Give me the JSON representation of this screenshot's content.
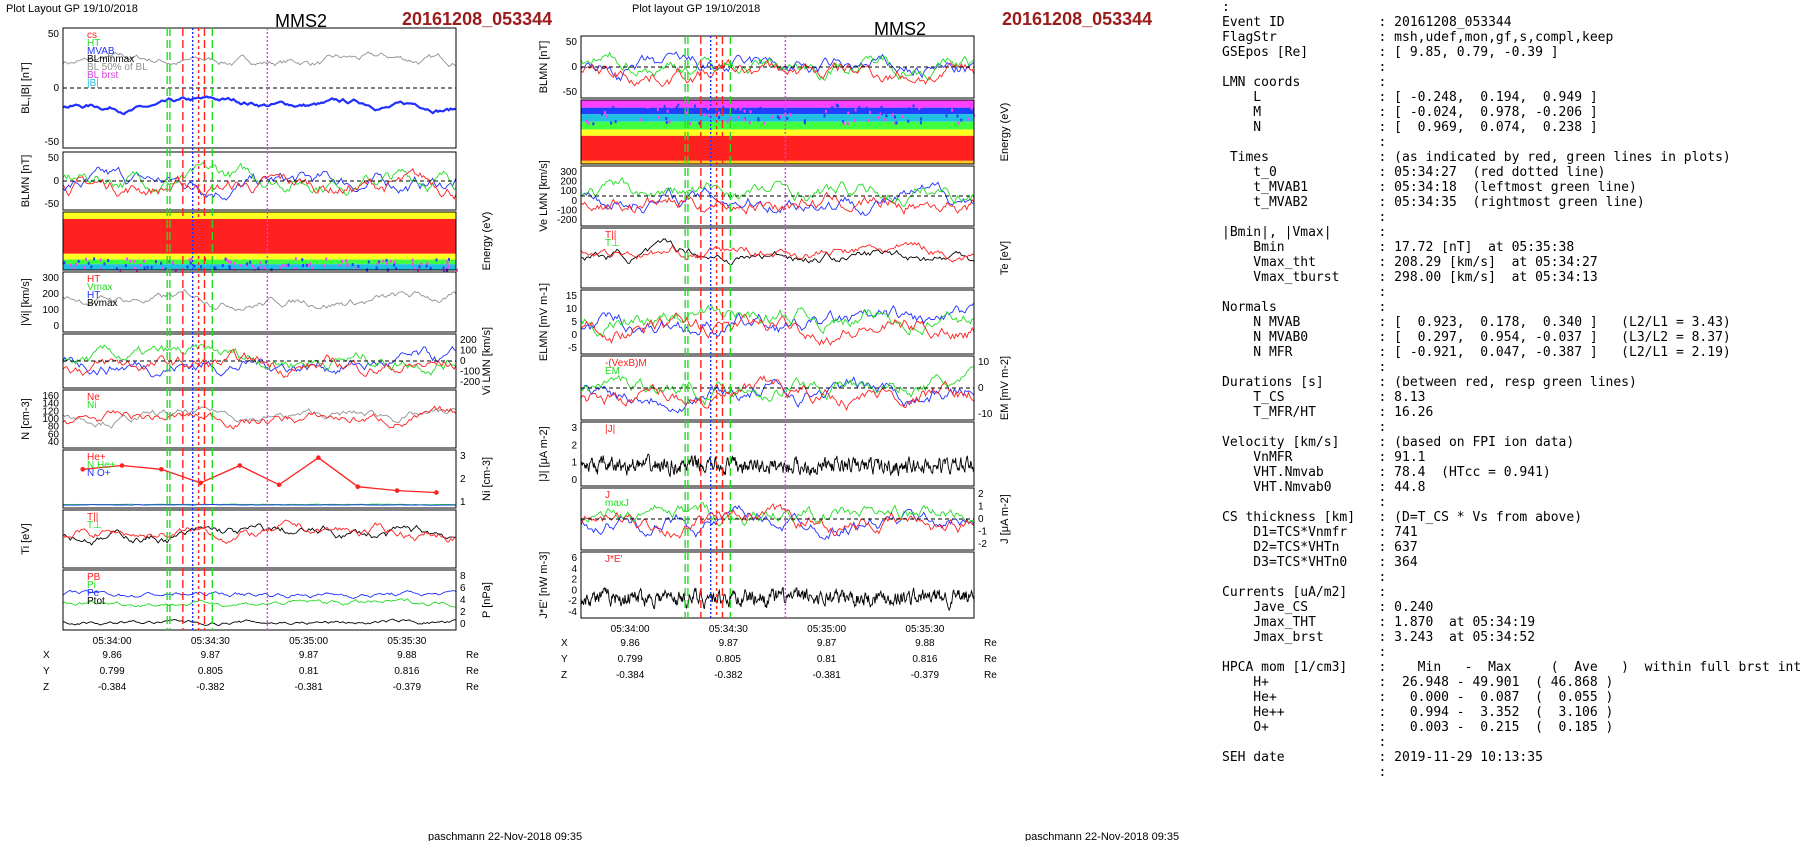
{
  "header": {
    "left_layout": "Plot Layout GP 19/10/2018",
    "right_layout": "Plot layout GP 19/10/2018",
    "spacecraft": "MMS2",
    "event": "20161208_053344"
  },
  "footer": "paschmann 22-Nov-2018 09:35",
  "time_ticks": [
    "05:34:00",
    "05:34:30",
    "05:35:00",
    "05:35:30"
  ],
  "position_table": {
    "unit": "Re",
    "rows": [
      {
        "name": "X",
        "values": [
          "9.86",
          "9.87",
          "9.87",
          "9.88"
        ]
      },
      {
        "name": "Y",
        "values": [
          "0.799",
          "0.805",
          "0.81",
          "0.816"
        ]
      },
      {
        "name": "Z",
        "values": [
          "-0.384",
          "-0.382",
          "-0.381",
          "-0.379"
        ]
      }
    ]
  },
  "colors": {
    "red": "#ff2020",
    "green": "#22dd22",
    "blue": "#2030ff",
    "black": "#000000",
    "gray": "#909090",
    "magenta": "#e040e0",
    "cyan": "#20c0e0",
    "event": "#9b1b1b"
  },
  "chart_data": [
    {
      "type": "line",
      "column": "left",
      "panels": [
        {
          "id": "BL_B",
          "ylabel": "BL,|B| [nT]",
          "ylim": [
            -70,
            70
          ],
          "yticks": [
            50,
            0,
            -50
          ],
          "legend": [
            "cs",
            "HT",
            "MVAB",
            "BLminmax",
            "BL 50% of BL",
            "BL brst",
            "|B|"
          ],
          "series": [
            {
              "name": "|B|",
              "color": "gray",
              "base": 30
            },
            {
              "name": "BL",
              "color": "blue",
              "base": -20
            }
          ]
        },
        {
          "id": "BLMN",
          "ylabel": "BLMN [nT]",
          "ylim": [
            -70,
            70
          ],
          "yticks": [
            50,
            0,
            -50
          ],
          "series": [
            {
              "name": "BL",
              "color": "blue"
            },
            {
              "name": "BM",
              "color": "green"
            },
            {
              "name": "BN",
              "color": "red"
            }
          ]
        },
        {
          "id": "ion_spec",
          "type": "heatmap",
          "ylabel": "Energy (eV)",
          "yticks": [
            "10^4",
            "10^3",
            "10^2",
            "10^1"
          ]
        },
        {
          "id": "Vi",
          "ylabel": "|Vi| [km/s]",
          "ylim": [
            0,
            300
          ],
          "yticks": [
            300,
            200,
            100,
            0
          ],
          "legend": [
            "HT",
            "Vmax",
            "HT",
            "Bvmax"
          ]
        },
        {
          "id": "ViLMN",
          "ylabel": "Vi LMN [km/s]",
          "ylim": [
            -250,
            250
          ],
          "yticks": [
            200,
            100,
            0,
            -100,
            -200
          ],
          "series": [
            {
              "name": "VL",
              "color": "blue"
            },
            {
              "name": "VM",
              "color": "green"
            },
            {
              "name": "VN",
              "color": "red"
            }
          ]
        },
        {
          "id": "N",
          "ylabel": "N [cm-3]",
          "ylim": [
            40,
            170
          ],
          "yticks": [
            160,
            140,
            120,
            100,
            80,
            60,
            40
          ],
          "legend": [
            "Ne",
            "Ni"
          ]
        },
        {
          "id": "Ni_hpca",
          "ylabel": "Ni [cm-3]",
          "ylim": [
            0.5,
            3.5
          ],
          "yticks": [
            3,
            2,
            1
          ],
          "legend": [
            "He+",
            "N He+",
            "N O+"
          ],
          "markers": [
            2.5,
            2.7,
            2.5,
            1.8,
            2.7,
            1.7,
            3.1,
            1.6,
            1.4,
            1.3
          ]
        },
        {
          "id": "Ti",
          "ylabel": "Ti [eV]",
          "ylim": [
            0,
            300
          ],
          "legend": [
            "T||",
            "T⊥"
          ]
        },
        {
          "id": "P",
          "ylabel": "P [nPa]",
          "ylim": [
            0,
            8
          ],
          "yticks": [
            8,
            6,
            4,
            2,
            0
          ],
          "legend": [
            "PB",
            "Pi",
            "Pe",
            "Ptot"
          ]
        }
      ]
    },
    {
      "type": "line",
      "column": "right",
      "panels": [
        {
          "id": "BLMN",
          "ylabel": "BLMN [nT]",
          "ylim": [
            -70,
            70
          ],
          "yticks": [
            50,
            0,
            -50
          ]
        },
        {
          "id": "e_spec",
          "type": "heatmap",
          "ylabel": "Energy (eV)",
          "yticks": [
            "10^4",
            "10^3",
            "10^2",
            "10^1"
          ]
        },
        {
          "id": "VeLMN",
          "ylabel": "Ve LMN [km/s]",
          "ylim": [
            -300,
            300
          ],
          "yticks": [
            300,
            200,
            100,
            0,
            -100,
            -200
          ]
        },
        {
          "id": "Te",
          "ylabel": "Te [eV]",
          "legend": [
            "T||",
            "T⊥"
          ]
        },
        {
          "id": "ELMN",
          "ylabel": "ELMN [mV m-1]",
          "ylim": [
            -7,
            17
          ],
          "yticks": [
            15,
            10,
            5,
            0,
            -5
          ]
        },
        {
          "id": "EM",
          "ylabel": "EM [mV m-2]",
          "ylim": [
            -14,
            14
          ],
          "yticks": [
            10,
            0,
            -10
          ],
          "legend": [
            "-(VexB)M",
            "EM"
          ]
        },
        {
          "id": "J",
          "ylabel": "|J| [μA m-2]",
          "ylim": [
            0,
            3.2
          ],
          "yticks": [
            3,
            2,
            1,
            0
          ],
          "legend": [
            "|J|"
          ]
        },
        {
          "id": "JLMN",
          "ylabel": "J [μA m-2]",
          "ylim": [
            -2.5,
            2.5
          ],
          "yticks": [
            2,
            1,
            0,
            -1,
            -2
          ],
          "legend": [
            "J",
            "maxJ"
          ]
        },
        {
          "id": "JE",
          "ylabel": "J*E' [nW m-3]",
          "ylim": [
            -4.5,
            6.5
          ],
          "yticks": [
            6,
            4,
            2,
            0,
            -2,
            -4
          ],
          "legend": [
            "J*E'"
          ]
        }
      ]
    }
  ],
  "info_lines": [
    [
      ":",
      ""
    ],
    [
      "Event ID",
      ": 20161208_053344"
    ],
    [
      "FlagStr",
      ": msh,udef,mon,gf,s,compl,keep"
    ],
    [
      "GSEpos [Re]",
      ": [ 9.85, 0.79, -0.39 ]"
    ],
    [
      "",
      ":"
    ],
    [
      "LMN coords",
      ":"
    ],
    [
      "    L",
      ": [ -0.248,  0.194,  0.949 ]"
    ],
    [
      "    M",
      ": [ -0.024,  0.978, -0.206 ]"
    ],
    [
      "    N",
      ": [  0.969,  0.074,  0.238 ]"
    ],
    [
      "",
      ":"
    ],
    [
      " Times",
      ": (as indicated by red, green lines in plots)"
    ],
    [
      "    t_0",
      ": 05:34:27  (red dotted line)"
    ],
    [
      "    t_MVAB1",
      ": 05:34:18  (leftmost green line)"
    ],
    [
      "    t_MVAB2",
      ": 05:34:35  (rightmost green line)"
    ],
    [
      "",
      ":"
    ],
    [
      "|Bmin|, |Vmax|",
      ":"
    ],
    [
      "    Bmin",
      ": 17.72 [nT]  at 05:35:38"
    ],
    [
      "    Vmax_tht",
      ": 208.29 [km/s]  at 05:34:27"
    ],
    [
      "    Vmax_tburst",
      ": 298.00 [km/s]  at 05:34:13"
    ],
    [
      "",
      ":"
    ],
    [
      "Normals",
      ":"
    ],
    [
      "    N MVAB",
      ": [  0.923,  0.178,  0.340 ]   (L2/L1 = 3.43)"
    ],
    [
      "    N MVAB0",
      ": [  0.297,  0.954, -0.037 ]   (L3/L2 = 8.37)"
    ],
    [
      "    N MFR",
      ": [ -0.921,  0.047, -0.387 ]   (L2/L1 = 2.19)"
    ],
    [
      "",
      ":"
    ],
    [
      "Durations [s]",
      ": (between red, resp green lines)"
    ],
    [
      "    T_CS",
      ": 8.13"
    ],
    [
      "    T_MFR/HT",
      ": 16.26"
    ],
    [
      "",
      ":"
    ],
    [
      "Velocity [km/s]",
      ": (based on FPI ion data)"
    ],
    [
      "    VnMFR",
      ": 91.1"
    ],
    [
      "    VHT.Nmvab",
      ": 78.4  (HTcc = 0.941)"
    ],
    [
      "    VHT.Nmvab0",
      ": 44.8"
    ],
    [
      "",
      ":"
    ],
    [
      "CS thickness [km]",
      ": (D=T_CS * Vs from above)"
    ],
    [
      "    D1=TCS*Vnmfr",
      ": 741"
    ],
    [
      "    D2=TCS*VHTn",
      ": 637"
    ],
    [
      "    D3=TCS*VHTn0",
      ": 364"
    ],
    [
      "",
      ":"
    ],
    [
      "Currents [uA/m2]",
      ":"
    ],
    [
      "    Jave_CS",
      ": 0.240"
    ],
    [
      "    Jmax_THT",
      ": 1.870  at 05:34:19"
    ],
    [
      "    Jmax_brst",
      ": 3.243  at 05:34:52"
    ],
    [
      "",
      ":"
    ],
    [
      "HPCA mom [1/cm3]",
      ":    Min   -  Max     (  Ave   )  within full brst int"
    ],
    [
      "    H+",
      ":  26.948 - 49.901  ( 46.868 )"
    ],
    [
      "    He+",
      ":   0.000 -  0.087  (  0.055 )"
    ],
    [
      "    He++",
      ":   0.994 -  3.352  (  3.106 )"
    ],
    [
      "    O+",
      ":   0.003 -  0.215  (  0.185 )"
    ],
    [
      "",
      ":"
    ],
    [
      "SEH date",
      ": 2019-11-29 10:13:35"
    ],
    [
      "",
      ":"
    ]
  ]
}
